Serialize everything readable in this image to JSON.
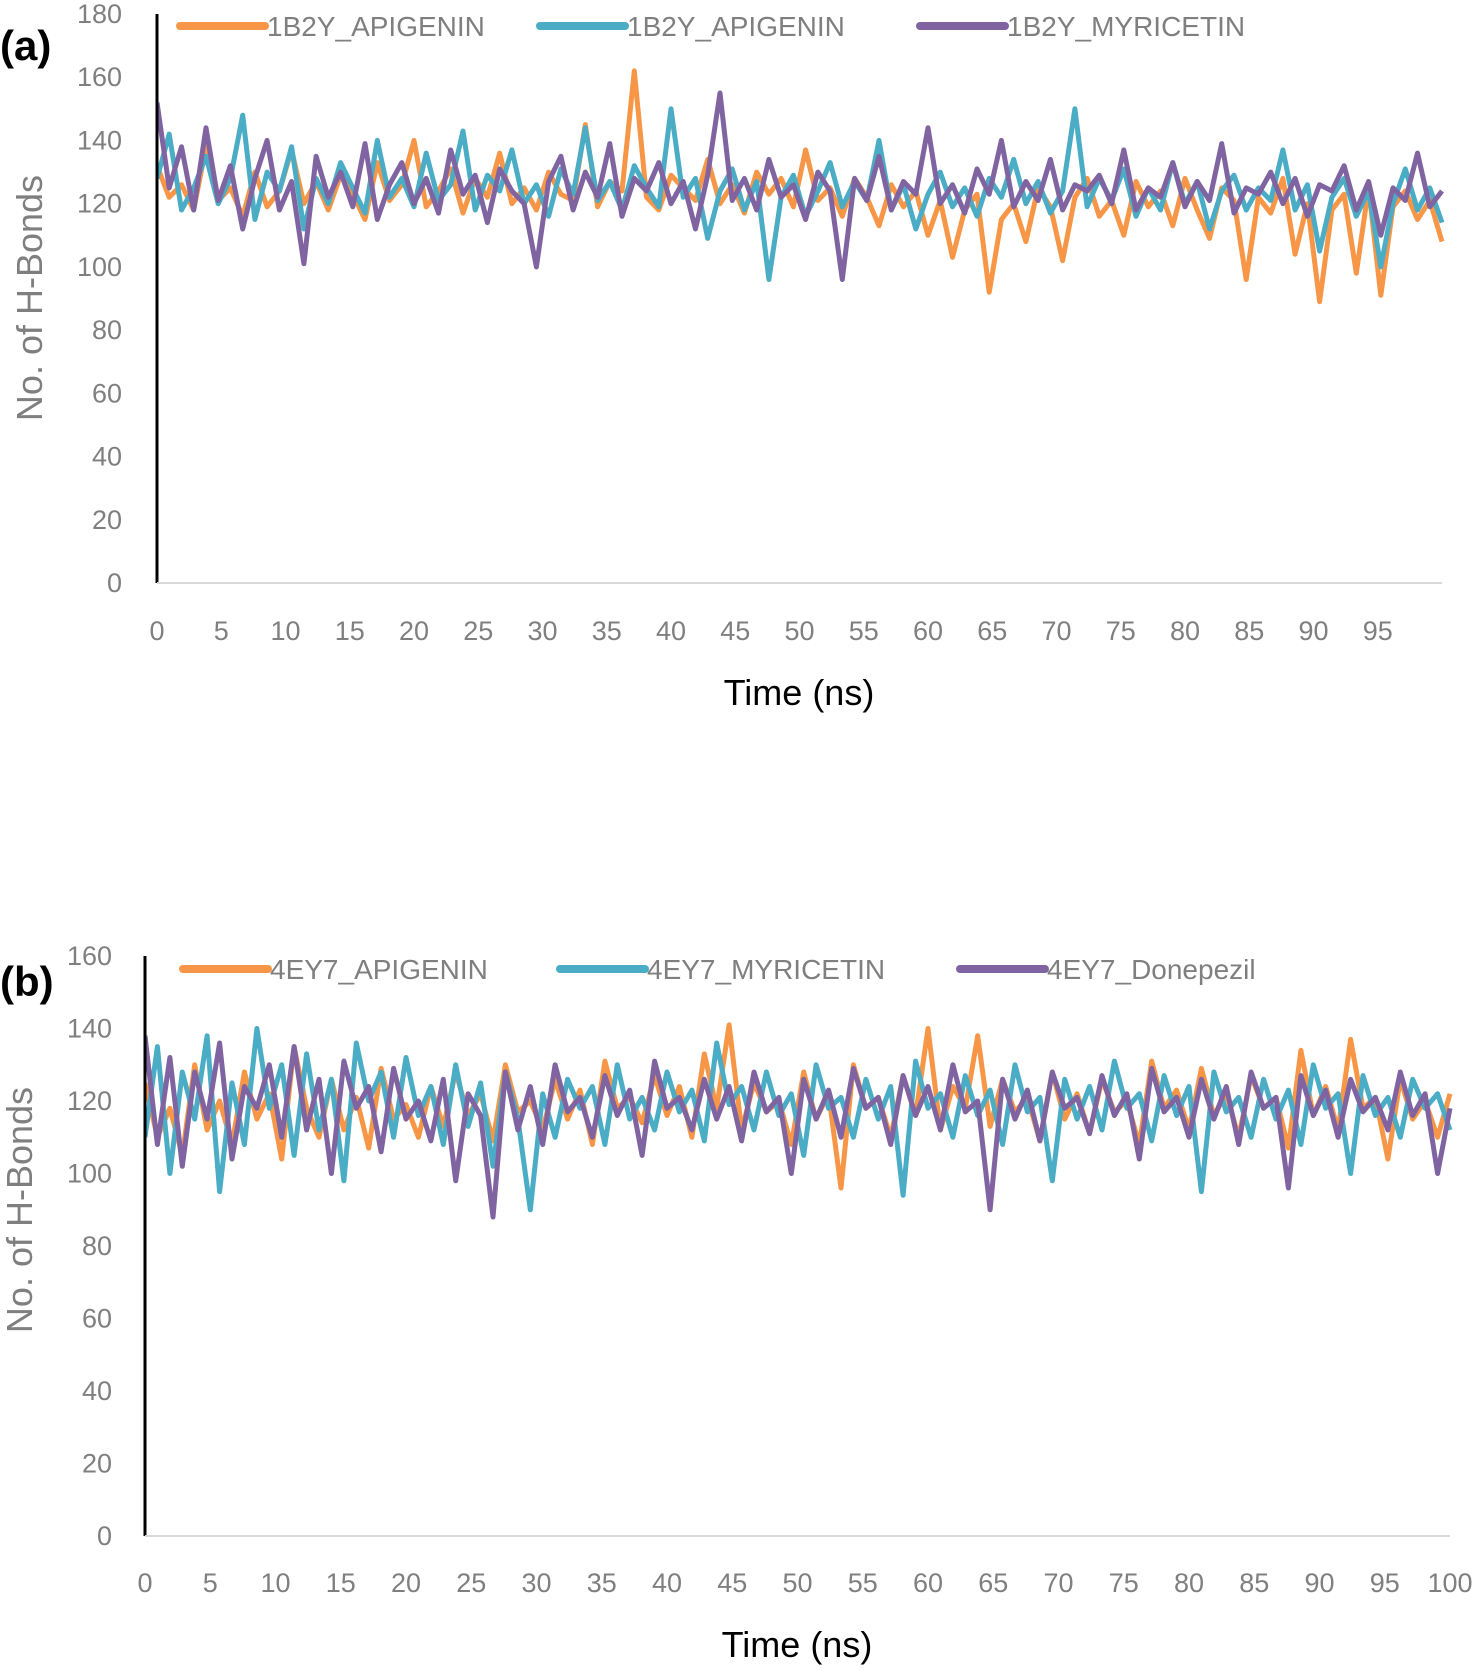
{
  "chart_data": [
    {
      "panel_label": "(a)",
      "type": "line",
      "title": "",
      "xlabel": "Time (ns)",
      "ylabel": "No. of H-Bonds",
      "xlim": [
        0,
        100
      ],
      "ylim": [
        0,
        180
      ],
      "x_ticks": [
        0,
        5,
        10,
        15,
        20,
        25,
        30,
        35,
        40,
        45,
        50,
        55,
        60,
        65,
        70,
        75,
        80,
        85,
        90,
        95
      ],
      "y_ticks": [
        0,
        20,
        40,
        60,
        80,
        100,
        120,
        140,
        160,
        180
      ],
      "grid": false,
      "legend_position": "top",
      "series": [
        {
          "name": "1B2Y_APIGENIN",
          "color": "#f79646",
          "values": [
            132,
            122,
            126,
            118,
            138,
            121,
            125,
            116,
            130,
            119,
            124,
            137,
            120,
            127,
            118,
            129,
            123,
            115,
            133,
            121,
            126,
            140,
            119,
            124,
            131,
            117,
            128,
            122,
            136,
            120,
            125,
            118,
            130,
            123,
            121,
            145,
            119,
            127,
            124,
            162,
            122,
            118,
            129,
            125,
            121,
            134,
            120,
            126,
            117,
            130,
            123,
            128,
            119,
            137,
            121,
            125,
            116,
            128,
            122,
            113,
            126,
            119,
            124,
            110,
            121,
            103,
            118,
            123,
            92,
            115,
            120,
            108,
            125,
            119,
            102,
            122,
            128,
            116,
            121,
            110,
            127,
            119,
            124,
            113,
            128,
            118,
            109,
            125,
            121,
            96,
            122,
            117,
            128,
            104,
            120,
            89,
            118,
            123,
            98,
            125,
            91,
            119,
            124,
            115,
            121,
            108
          ]
        },
        {
          "name": "1B2Y_APIGENIN",
          "color": "#4bacc6",
          "values": [
            128,
            142,
            118,
            125,
            135,
            120,
            128,
            148,
            115,
            130,
            124,
            138,
            112,
            128,
            120,
            133,
            125,
            117,
            140,
            122,
            128,
            119,
            136,
            121,
            126,
            143,
            118,
            129,
            124,
            137,
            120,
            126,
            116,
            131,
            123,
            144,
            121,
            127,
            118,
            132,
            125,
            119,
            150,
            122,
            128,
            109,
            124,
            131,
            118,
            127,
            96,
            122,
            129,
            116,
            124,
            133,
            119,
            127,
            121,
            140,
            118,
            126,
            112,
            123,
            130,
            119,
            125,
            116,
            128,
            122,
            134,
            120,
            127,
            117,
            124,
            150,
            119,
            128,
            121,
            131,
            116,
            125,
            118,
            133,
            120,
            127,
            112,
            124,
            129,
            118,
            125,
            121,
            137,
            118,
            126,
            105,
            122,
            128,
            116,
            124,
            100,
            120,
            131,
            118,
            125,
            114
          ]
        },
        {
          "name": "1B2Y_MYRICETIN",
          "color": "#8064a2",
          "values": [
            152,
            125,
            138,
            118,
            144,
            121,
            132,
            112,
            128,
            140,
            118,
            127,
            101,
            135,
            122,
            130,
            119,
            139,
            115,
            126,
            133,
            120,
            128,
            117,
            137,
            123,
            129,
            114,
            131,
            124,
            120,
            100,
            127,
            135,
            118,
            130,
            122,
            139,
            116,
            128,
            124,
            133,
            120,
            127,
            112,
            129,
            155,
            121,
            128,
            118,
            134,
            122,
            126,
            115,
            130,
            124,
            96,
            128,
            121,
            135,
            118,
            127,
            123,
            144,
            120,
            126,
            117,
            131,
            123,
            140,
            119,
            127,
            121,
            134,
            118,
            126,
            124,
            129,
            120,
            137,
            118,
            125,
            122,
            133,
            119,
            127,
            121,
            139,
            117,
            125,
            123,
            130,
            120,
            128,
            116,
            126,
            124,
            132,
            118,
            127,
            110,
            125,
            121,
            136,
            119,
            124
          ]
        }
      ]
    },
    {
      "panel_label": "(b)",
      "type": "line",
      "title": "",
      "xlabel": "Time (ns)",
      "ylabel": "No. of H-Bonds",
      "xlim": [
        0,
        100
      ],
      "ylim": [
        0,
        160
      ],
      "x_ticks": [
        0,
        5,
        10,
        15,
        20,
        25,
        30,
        35,
        40,
        45,
        50,
        55,
        60,
        65,
        70,
        75,
        80,
        85,
        90,
        95,
        100
      ],
      "y_ticks": [
        0,
        20,
        40,
        60,
        80,
        100,
        120,
        140,
        160
      ],
      "grid": false,
      "legend_position": "top",
      "series": [
        {
          "name": "4EY7_APIGENIN",
          "color": "#f79646",
          "values": [
            125,
            110,
            118,
            105,
            130,
            112,
            120,
            108,
            128,
            115,
            122,
            104,
            135,
            118,
            110,
            126,
            112,
            121,
            107,
            129,
            115,
            119,
            110,
            124,
            113,
            128,
            116,
            122,
            109,
            130,
            117,
            120,
            112,
            126,
            115,
            123,
            108,
            131,
            118,
            121,
            114,
            127,
            116,
            124,
            110,
            133,
            118,
            141,
            112,
            125,
            117,
            120,
            108,
            128,
            115,
            122,
            96,
            130,
            118,
            121,
            110,
            127,
            116,
            140,
            112,
            124,
            118,
            138,
            113,
            126,
            117,
            121,
            109,
            128,
            115,
            122,
            111,
            126,
            117,
            120,
            108,
            131,
            118,
            123,
            112,
            129,
            116,
            122,
            110,
            127,
            118,
            121,
            107,
            134,
            116,
            124,
            112,
            137,
            118,
            121,
            104,
            126,
            115,
            120,
            110,
            122
          ]
        },
        {
          "name": "4EY7_MYRICETIN",
          "color": "#4bacc6",
          "values": [
            110,
            135,
            100,
            128,
            115,
            138,
            95,
            125,
            108,
            140,
            118,
            130,
            105,
            133,
            112,
            126,
            98,
            136,
            120,
            128,
            110,
            132,
            116,
            124,
            108,
            130,
            113,
            125,
            102,
            128,
            115,
            90,
            122,
            110,
            126,
            118,
            124,
            108,
            130,
            115,
            121,
            112,
            128,
            117,
            123,
            109,
            136,
            119,
            124,
            112,
            128,
            116,
            122,
            105,
            130,
            118,
            121,
            110,
            126,
            115,
            124,
            94,
            131,
            118,
            122,
            110,
            127,
            116,
            123,
            108,
            130,
            117,
            121,
            98,
            126,
            115,
            124,
            112,
            131,
            118,
            122,
            109,
            127,
            116,
            124,
            95,
            128,
            117,
            121,
            110,
            126,
            115,
            123,
            108,
            130,
            118,
            122,
            100,
            127,
            116,
            121,
            110,
            126,
            118,
            122,
            112
          ]
        },
        {
          "name": "4EY7_Donepezil",
          "color": "#8064a2",
          "values": [
            138,
            108,
            132,
            102,
            128,
            115,
            136,
            104,
            124,
            118,
            130,
            110,
            135,
            112,
            126,
            100,
            131,
            118,
            124,
            106,
            129,
            115,
            120,
            109,
            126,
            98,
            122,
            116,
            88,
            128,
            112,
            124,
            108,
            130,
            117,
            121,
            110,
            127,
            116,
            123,
            105,
            131,
            118,
            121,
            112,
            126,
            115,
            124,
            109,
            128,
            117,
            121,
            100,
            126,
            115,
            123,
            110,
            129,
            118,
            121,
            108,
            127,
            116,
            124,
            112,
            130,
            117,
            120,
            90,
            126,
            115,
            123,
            109,
            128,
            118,
            121,
            111,
            127,
            116,
            122,
            104,
            129,
            117,
            121,
            110,
            126,
            115,
            124,
            108,
            128,
            118,
            121,
            96,
            127,
            116,
            123,
            110,
            126,
            117,
            121,
            112,
            128,
            116,
            122,
            100,
            118
          ]
        }
      ]
    }
  ]
}
